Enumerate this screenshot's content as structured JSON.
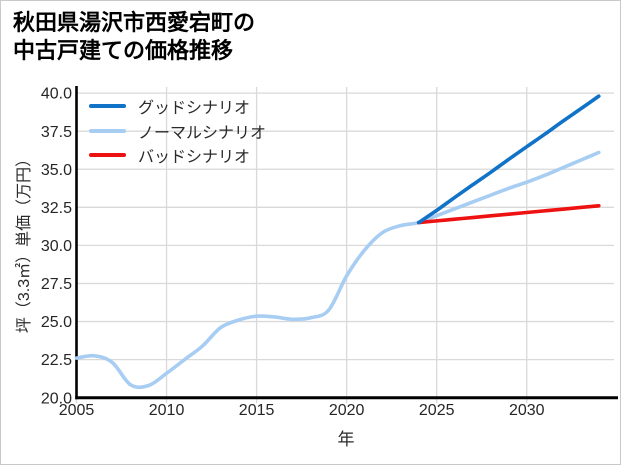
{
  "page": {
    "background": "#ffffff",
    "border_color": "#c9c9c9"
  },
  "chart_data": {
    "type": "line",
    "title": "秋田県湯沢市西愛宕町の中古戸建ての価格推移",
    "title_lines": [
      "秋田県湯沢市西愛宕町の",
      "中古戸建ての価格推移"
    ],
    "xlabel": "年",
    "ylabel": "坪（3.3㎡）単価（万円）",
    "x_ticks": [
      "2005",
      "2010",
      "2015",
      "2020",
      "2025",
      "2030"
    ],
    "x_tick_values": [
      2005,
      2010,
      2015,
      2020,
      2025,
      2030
    ],
    "y_ticks": [
      "20.0",
      "22.5",
      "25.0",
      "27.5",
      "30.0",
      "32.5",
      "35.0",
      "37.5",
      "40.0"
    ],
    "y_tick_values": [
      20.0,
      22.5,
      25.0,
      27.5,
      30.0,
      32.5,
      35.0,
      37.5,
      40.0
    ],
    "xlim": [
      2005,
      2034.9
    ],
    "ylim": [
      20,
      40.4
    ],
    "grid": true,
    "legend_position": "top-left-inside",
    "colors": {
      "good": "#1173c8",
      "normal": "#a7cdf2",
      "bad": "#ee1111",
      "grid": "#d9d9d9",
      "axis": "#000000",
      "text": "#262626"
    },
    "series": [
      {
        "key": "good",
        "name": "グッドシナリオ",
        "x": [
          2024,
          2025,
          2026,
          2027,
          2028,
          2029,
          2030,
          2031,
          2032,
          2033,
          2034
        ],
        "values": [
          31.5,
          32.3,
          33.15,
          33.98,
          34.8,
          35.65,
          36.48,
          37.3,
          38.15,
          38.97,
          39.8
        ]
      },
      {
        "key": "normal",
        "name": "ノーマルシナリオ",
        "x": [
          2005,
          2006,
          2007,
          2008,
          2009,
          2010,
          2011,
          2012,
          2013,
          2014,
          2015,
          2016,
          2017,
          2018,
          2019,
          2020,
          2021,
          2022,
          2023,
          2024,
          2025,
          2026,
          2027,
          2028,
          2029,
          2030,
          2031,
          2032,
          2033,
          2034
        ],
        "values": [
          22.6,
          22.75,
          22.3,
          20.85,
          20.8,
          21.6,
          22.5,
          23.4,
          24.6,
          25.1,
          25.35,
          25.3,
          25.15,
          25.25,
          25.75,
          28.0,
          29.7,
          30.85,
          31.3,
          31.5,
          31.95,
          32.4,
          32.85,
          33.3,
          33.75,
          34.15,
          34.6,
          35.1,
          35.6,
          36.1
        ]
      },
      {
        "key": "bad",
        "name": "バッドシナリオ",
        "x": [
          2024,
          2025,
          2026,
          2027,
          2028,
          2029,
          2030,
          2031,
          2032,
          2033,
          2034
        ],
        "values": [
          31.5,
          31.61,
          31.72,
          31.83,
          31.94,
          32.05,
          32.16,
          32.27,
          32.38,
          32.49,
          32.6
        ]
      }
    ]
  }
}
